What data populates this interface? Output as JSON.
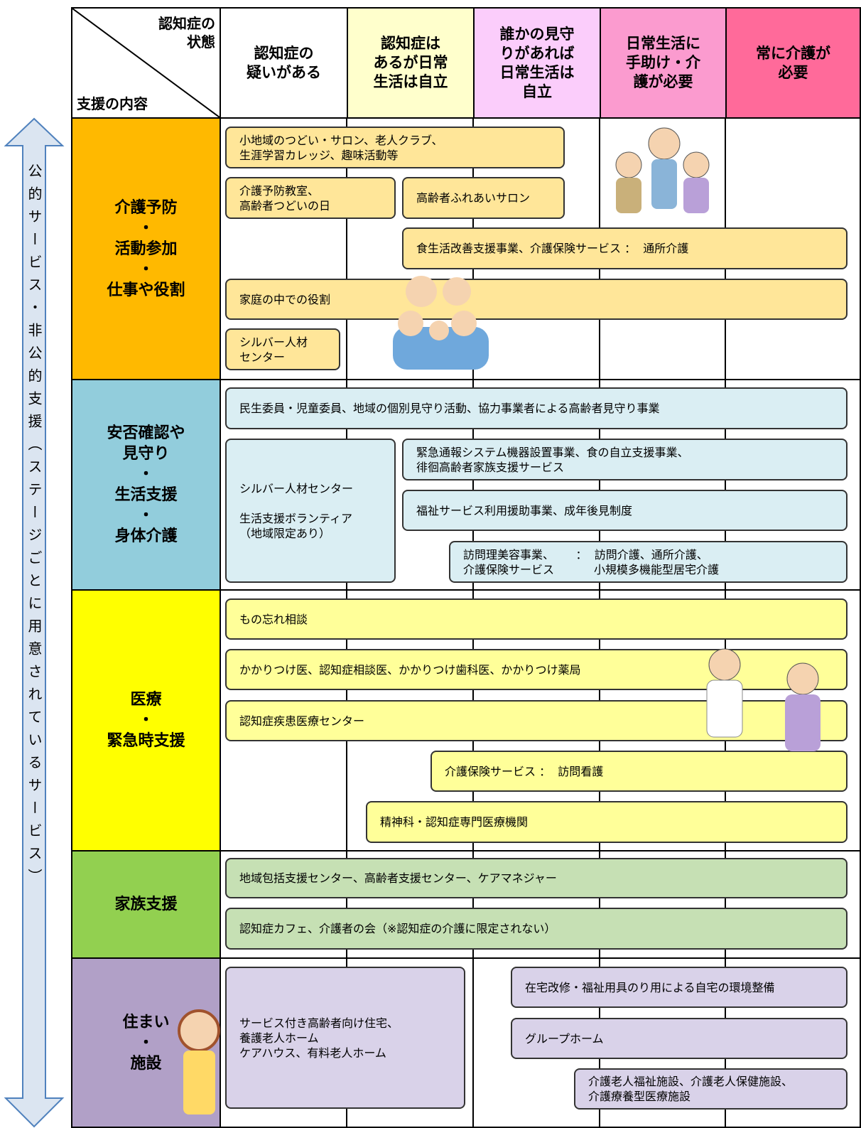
{
  "side_label": "公的サービス・非公的支援（ステージごとに用意されているサービス）",
  "header": {
    "corner_top": "認知症の\n状態",
    "corner_bottom": "支援の内容",
    "columns": [
      "認知症の\n疑いがある",
      "認知症は\nあるが日常\n生活は自立",
      "誰かの見守\nりがあれば\n日常生活は\n自立",
      "日常生活に\n手助け・介\n護が必要",
      "常に介護が\n必要"
    ]
  },
  "rows": [
    {
      "label": "介護予防\n・\n活動参加\n・\n仕事や役割",
      "boxes": [
        "小地域のつどい・サロン、老人クラブ、\n生涯学習カレッジ、趣味活動等",
        "介護予防教室、\n高齢者つどいの日",
        "高齢者ふれあいサロン",
        "食生活改善支援事業、介護保険サービス ：  通所介護",
        "家庭の中での役割",
        "シルバー人材\nセンター"
      ]
    },
    {
      "label": "安否確認や\n見守り\n・\n生活支援\n・\n身体介護",
      "boxes": [
        "民生委員・児童委員、地域の個別見守り活動、協力事業者による高齢者見守り事業",
        "シルバー人材センター\n\n生活支援ボランティア\n（地域限定あり）",
        "緊急通報システム機器設置事業、食の自立支援事業、\n徘徊高齢者家族支援サービス",
        "福祉サービス利用援助事業、成年後見制度",
        "訪問理美容事業、      ：  訪問介護、通所介護、\n介護保険サービス           小規模多機能型居宅介護"
      ]
    },
    {
      "label": "医療\n・\n緊急時支援",
      "boxes": [
        "もの忘れ相談",
        "かかりつけ医、認知症相談医、かかりつけ歯科医、かかりつけ薬局",
        "認知症疾患医療センター",
        "介護保険サービス ：  訪問看護",
        "精神科・認知症専門医療機関"
      ]
    },
    {
      "label": "家族支援",
      "boxes": [
        "地域包括支援センター、高齢者支援センター、ケアマネジャー",
        "認知症カフェ、介護者の会（※認知症の介護に限定されない）"
      ]
    },
    {
      "label": "住まい\n・\n施設",
      "boxes": [
        "サービス付き高齢者向け住宅、\n養護老人ホーム\nケアハウス、有料老人ホーム",
        "在宅改修・福祉用具のり用による自宅の環境整備",
        "グループホーム",
        "介護老人福祉施設、介護老人保健施設、\n介護療養型医療施設"
      ]
    }
  ]
}
